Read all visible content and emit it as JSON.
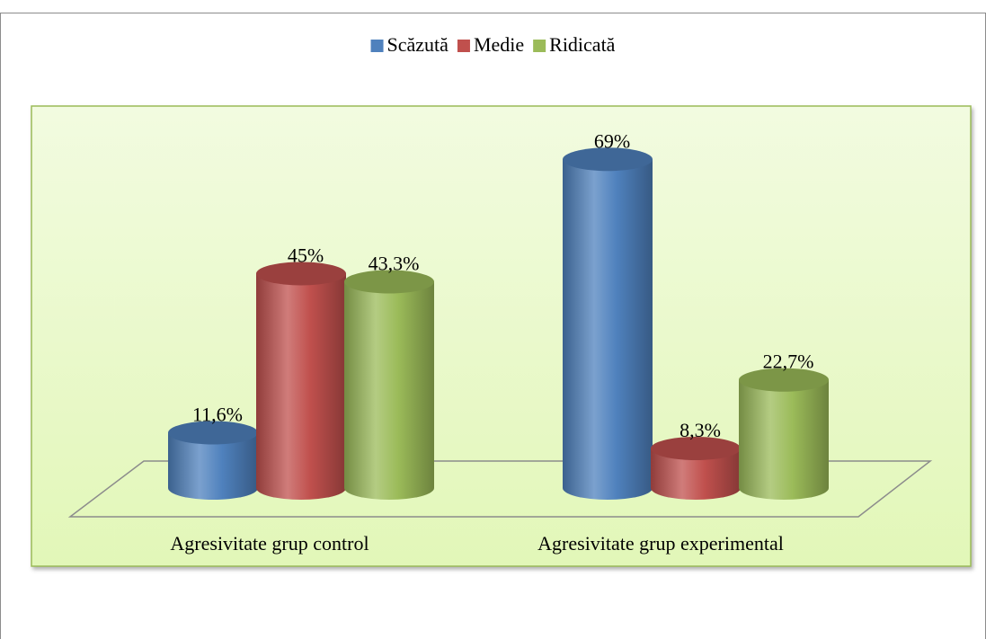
{
  "chart_data": {
    "type": "bar3d",
    "categories": [
      "Agresivitate grup control",
      "Agresivitate grup experimental"
    ],
    "series": [
      {
        "name": "Scăzută",
        "color": "#4f81bd",
        "values": [
          11.6,
          69
        ],
        "value_labels": [
          "11,6%",
          "69%"
        ]
      },
      {
        "name": "Medie",
        "color": "#c0504d",
        "values": [
          45,
          8.3
        ],
        "value_labels": [
          "45%",
          "8,3%"
        ]
      },
      {
        "name": "Ridicată",
        "color": "#9bbb59",
        "values": [
          43.3,
          22.7
        ],
        "value_labels": [
          "43,3%",
          "22,7%"
        ]
      }
    ],
    "legend": "top"
  }
}
